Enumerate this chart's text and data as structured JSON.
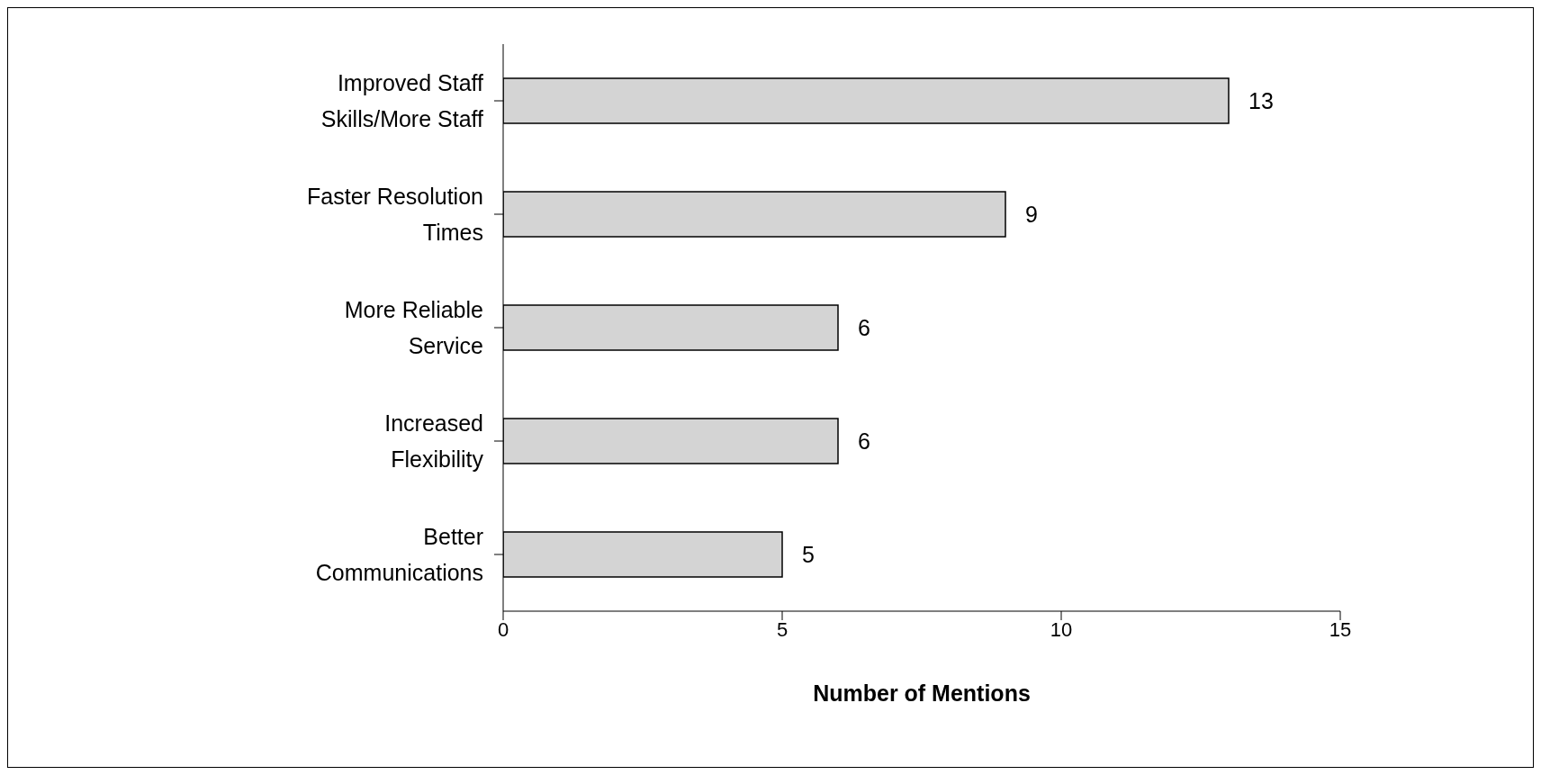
{
  "chart_data": {
    "type": "bar",
    "orientation": "horizontal",
    "xlabel": "Number of Mentions",
    "categories": [
      "Improved Staff Skills/More Staff",
      "Faster Resolution Times",
      "More Reliable Service",
      "Increased Flexibility",
      "Better Communications"
    ],
    "values": [
      13,
      9,
      6,
      6,
      5
    ],
    "color": "#d4d4d4",
    "xlim": [
      0,
      15
    ],
    "xticks": [
      0,
      5,
      10,
      15
    ],
    "grid": false,
    "legend": false,
    "data_labels": true
  }
}
